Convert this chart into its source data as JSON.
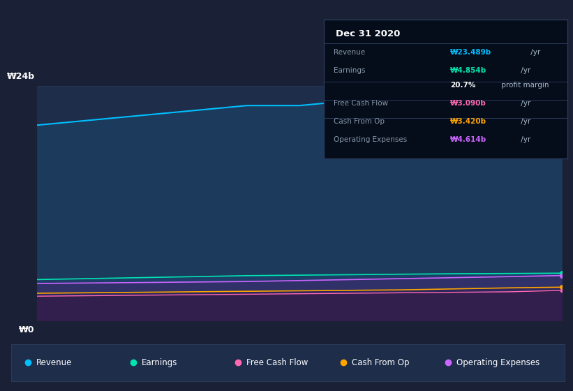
{
  "bg_color": "#1a2035",
  "chart_bg": "#1e2d4a",
  "tooltip_bg": "#050c1a",
  "tooltip_border": "#2a3a5a",
  "tooltip_date": "Dec 31 2020",
  "tooltip_rows": [
    {
      "label": "Revenue",
      "value": "₩23.489b",
      "suffix": " /yr",
      "color": "#00bfff",
      "divider_after": false
    },
    {
      "label": "Earnings",
      "value": "₩4.854b",
      "suffix": " /yr",
      "color": "#00e5b0",
      "divider_after": false
    },
    {
      "label": "",
      "value": "20.7%",
      "suffix": " profit margin",
      "color": "#ffffff",
      "divider_after": true
    },
    {
      "label": "Free Cash Flow",
      "value": "₩3.090b",
      "suffix": " /yr",
      "color": "#ff69b4",
      "divider_after": false
    },
    {
      "label": "Cash From Op",
      "value": "₩3.420b",
      "suffix": " /yr",
      "color": "#ffa500",
      "divider_after": false
    },
    {
      "label": "Operating Expenses",
      "value": "₩4.614b",
      "suffix": " /yr",
      "color": "#cc66ff",
      "divider_after": false
    }
  ],
  "y_label_top": "₩24b",
  "y_label_bot": "₩0",
  "y_max": 24,
  "x_points": [
    0,
    1,
    2,
    3,
    4,
    5,
    6,
    7,
    8,
    9,
    10
  ],
  "revenue": [
    20.0,
    20.5,
    21.0,
    21.5,
    22.0,
    22.0,
    22.5,
    22.8,
    23.0,
    23.2,
    23.489
  ],
  "earnings": [
    4.2,
    4.3,
    4.4,
    4.5,
    4.6,
    4.65,
    4.7,
    4.75,
    4.8,
    4.82,
    4.854
  ],
  "fcf": [
    2.5,
    2.55,
    2.6,
    2.65,
    2.7,
    2.75,
    2.8,
    2.85,
    2.9,
    2.95,
    3.09
  ],
  "cash_from_op": [
    2.8,
    2.85,
    2.9,
    2.95,
    3.0,
    3.05,
    3.1,
    3.15,
    3.25,
    3.35,
    3.42
  ],
  "op_expenses": [
    3.8,
    3.85,
    3.9,
    3.95,
    4.0,
    4.1,
    4.2,
    4.3,
    4.4,
    4.5,
    4.614
  ],
  "revenue_color": "#00bfff",
  "earnings_color": "#00e5b0",
  "fcf_color": "#ff69b4",
  "cash_op_color": "#ffa500",
  "op_exp_color": "#cc66ff",
  "legend_bg": "#1e2d4a",
  "legend_border": "#2a3a5a",
  "legend_items": [
    {
      "label": "Revenue",
      "color": "#00bfff"
    },
    {
      "label": "Earnings",
      "color": "#00e5b0"
    },
    {
      "label": "Free Cash Flow",
      "color": "#ff69b4"
    },
    {
      "label": "Cash From Op",
      "color": "#ffa500"
    },
    {
      "label": "Operating Expenses",
      "color": "#cc66ff"
    }
  ]
}
